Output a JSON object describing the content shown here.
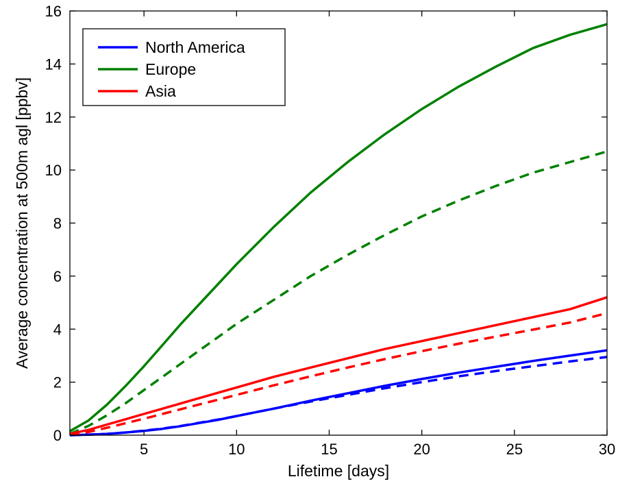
{
  "chart_data": {
    "type": "line",
    "xlabel": "Lifetime [days]",
    "ylabel": "Average concentration at 500m agl [ppbv]",
    "xlim": [
      1,
      30
    ],
    "ylim": [
      0,
      16
    ],
    "xticks": [
      5,
      10,
      15,
      20,
      25,
      30
    ],
    "yticks": [
      0,
      2,
      4,
      6,
      8,
      10,
      12,
      14,
      16
    ],
    "grid": false,
    "legend_position": "top-left",
    "legend": [
      "North America",
      "Europe",
      "Asia"
    ],
    "series": [
      {
        "name": "North America",
        "style": "solid",
        "color": "#0000ff",
        "x": [
          1,
          2,
          3,
          4,
          5,
          6,
          7,
          8,
          9,
          10,
          12,
          14,
          16,
          18,
          20,
          22,
          24,
          26,
          28,
          30
        ],
        "y": [
          0.0,
          0.02,
          0.05,
          0.1,
          0.16,
          0.24,
          0.34,
          0.46,
          0.58,
          0.72,
          1.0,
          1.3,
          1.58,
          1.86,
          2.12,
          2.36,
          2.58,
          2.8,
          3.0,
          3.2
        ]
      },
      {
        "name": "",
        "style": "dashed",
        "color": "#0000ff",
        "x": [
          1,
          2,
          3,
          4,
          5,
          6,
          7,
          8,
          9,
          10,
          12,
          14,
          16,
          18,
          20,
          22,
          24,
          26,
          28,
          30
        ],
        "y": [
          0.0,
          0.02,
          0.05,
          0.1,
          0.17,
          0.25,
          0.35,
          0.47,
          0.59,
          0.72,
          1.0,
          1.27,
          1.52,
          1.77,
          2.0,
          2.22,
          2.42,
          2.6,
          2.78,
          2.95
        ]
      },
      {
        "name": "Europe",
        "style": "solid",
        "color": "#008000",
        "x": [
          1,
          2,
          3,
          4,
          5,
          6,
          7,
          8,
          9,
          10,
          12,
          14,
          16,
          18,
          20,
          22,
          24,
          26,
          28,
          30
        ],
        "y": [
          0.15,
          0.55,
          1.15,
          1.85,
          2.6,
          3.4,
          4.2,
          4.95,
          5.7,
          6.45,
          7.85,
          9.15,
          10.3,
          11.35,
          12.3,
          13.15,
          13.9,
          14.6,
          15.1,
          15.5
        ]
      },
      {
        "name": "",
        "style": "dashed",
        "color": "#008000",
        "x": [
          1,
          2,
          3,
          4,
          5,
          6,
          7,
          8,
          9,
          10,
          12,
          14,
          16,
          18,
          20,
          22,
          24,
          26,
          28,
          30
        ],
        "y": [
          0.05,
          0.35,
          0.75,
          1.2,
          1.7,
          2.2,
          2.7,
          3.2,
          3.7,
          4.2,
          5.1,
          6.0,
          6.8,
          7.55,
          8.25,
          8.85,
          9.4,
          9.9,
          10.3,
          10.7
        ]
      },
      {
        "name": "Asia",
        "style": "solid",
        "color": "#ff0000",
        "x": [
          1,
          2,
          3,
          4,
          5,
          6,
          7,
          8,
          9,
          10,
          12,
          14,
          16,
          18,
          20,
          22,
          24,
          26,
          28,
          30
        ],
        "y": [
          0.05,
          0.2,
          0.4,
          0.6,
          0.8,
          1.0,
          1.2,
          1.4,
          1.6,
          1.8,
          2.2,
          2.55,
          2.9,
          3.25,
          3.55,
          3.85,
          4.15,
          4.45,
          4.75,
          5.2
        ]
      },
      {
        "name": "",
        "style": "dashed",
        "color": "#ff0000",
        "x": [
          1,
          2,
          3,
          4,
          5,
          6,
          7,
          8,
          9,
          10,
          12,
          14,
          16,
          18,
          20,
          22,
          24,
          26,
          28,
          30
        ],
        "y": [
          0.02,
          0.12,
          0.28,
          0.45,
          0.62,
          0.8,
          0.98,
          1.16,
          1.34,
          1.52,
          1.88,
          2.22,
          2.55,
          2.87,
          3.17,
          3.45,
          3.72,
          3.98,
          4.25,
          4.6
        ]
      }
    ]
  }
}
